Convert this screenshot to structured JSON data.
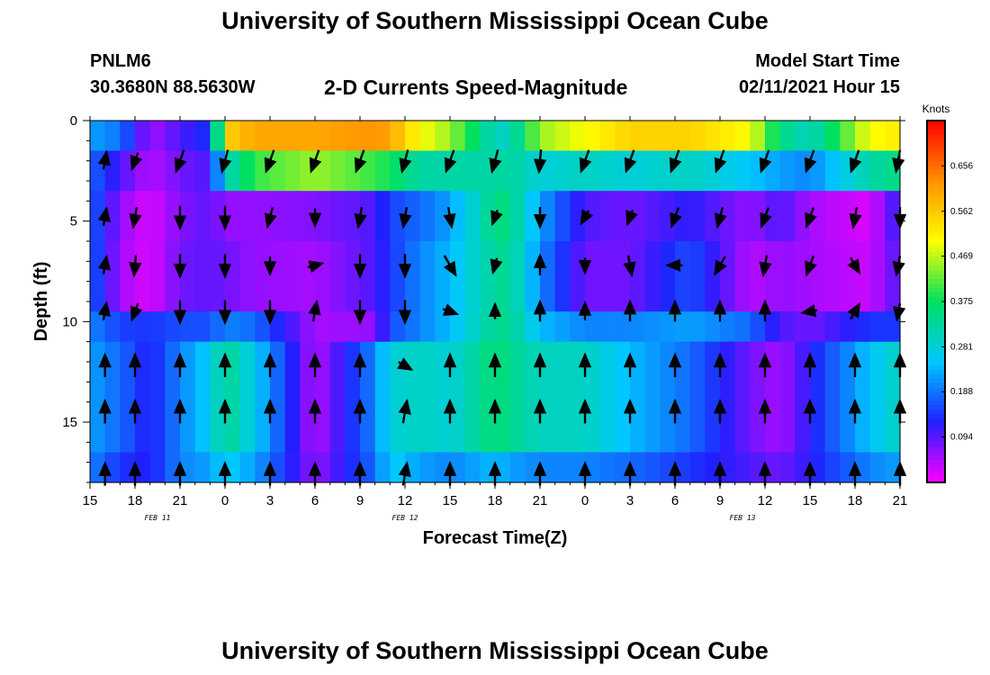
{
  "header": {
    "title": "University of Southern Mississippi Ocean Cube",
    "footer_title": "University of Southern Mississippi Ocean Cube",
    "station_id": "PNLM6",
    "station_coords": "30.3680N 88.5630W",
    "subtitle": "2-D Currents Speed-Magnitude",
    "model_start_label": "Model Start Time",
    "model_start_value": "02/11/2021 Hour 15"
  },
  "chart_data": {
    "type": "heatmap",
    "title": "2-D Currents Speed-Magnitude",
    "xlabel": "Forecast Time(Z)",
    "ylabel": "Depth (ft)",
    "x_tick_labels": [
      "15",
      "18",
      "21",
      "0",
      "3",
      "6",
      "9",
      "12",
      "15",
      "18",
      "21",
      "0",
      "3",
      "6",
      "9",
      "12",
      "15",
      "18",
      "21"
    ],
    "x_hours": [
      0,
      3,
      6,
      9,
      12,
      15,
      18,
      21,
      24,
      27,
      30,
      33,
      36,
      39,
      42,
      45,
      48,
      51,
      54
    ],
    "date_labels": [
      {
        "text": "FEB 11",
        "hour": 4.5
      },
      {
        "text": "FEB 12",
        "hour": 21
      },
      {
        "text": "FEB 13",
        "hour": 43.5
      }
    ],
    "xlim": [
      0,
      54
    ],
    "y_ticks": [
      0,
      5,
      10,
      15
    ],
    "ylim": [
      0,
      18
    ],
    "y_inverted": true,
    "colorbar": {
      "label": "Knots",
      "tick_values": [
        0.656,
        0.562,
        0.469,
        0.375,
        0.281,
        0.188,
        0.094
      ],
      "tick_labels": [
        "0.656",
        "0.562",
        "0.469",
        "0.375",
        "0.281",
        "0.188",
        "0.094"
      ],
      "range": [
        0,
        0.75
      ],
      "colormap": [
        "#ff00ff",
        "#2020ff",
        "#00c8ff",
        "#00e060",
        "#ffff00",
        "#ff9000",
        "#ff0000"
      ]
    },
    "speed_layers": [
      {
        "depth_range": [
          0,
          1.5
        ],
        "hours": [
          0,
          2,
          4,
          6,
          8,
          9,
          11,
          15,
          19,
          20,
          22,
          24,
          27,
          28,
          30,
          33,
          36,
          40,
          44,
          46,
          48,
          52,
          54
        ],
        "speed": [
          0.22,
          0.19,
          0.05,
          0.1,
          0.14,
          0.55,
          0.6,
          0.6,
          0.62,
          0.6,
          0.5,
          0.45,
          0.3,
          0.3,
          0.45,
          0.5,
          0.55,
          0.55,
          0.5,
          0.35,
          0.3,
          0.5,
          0.52
        ]
      },
      {
        "depth_range": [
          1.5,
          3.5
        ],
        "hours": [
          0,
          2,
          4,
          6,
          8,
          9,
          11,
          15,
          19,
          20,
          22,
          24,
          27,
          28,
          30,
          33,
          36,
          40,
          44,
          46,
          48,
          52,
          54
        ],
        "speed": [
          0.18,
          0.1,
          0.04,
          0.08,
          0.1,
          0.3,
          0.4,
          0.45,
          0.4,
          0.38,
          0.32,
          0.32,
          0.32,
          0.33,
          0.28,
          0.3,
          0.28,
          0.3,
          0.25,
          0.22,
          0.2,
          0.32,
          0.35
        ]
      },
      {
        "depth_range": [
          3.5,
          6
        ],
        "hours": [
          0,
          2,
          4,
          6,
          8,
          9,
          11,
          15,
          19,
          20,
          22,
          24,
          27,
          28,
          30,
          33,
          36,
          40,
          44,
          46,
          48,
          52,
          54
        ],
        "speed": [
          0.18,
          0.06,
          0.02,
          0.07,
          0.09,
          0.06,
          0.06,
          0.07,
          0.1,
          0.15,
          0.18,
          0.22,
          0.35,
          0.35,
          0.22,
          0.1,
          0.08,
          0.12,
          0.06,
          0.1,
          0.05,
          0.02,
          0.12
        ]
      },
      {
        "depth_range": [
          6,
          9.5
        ],
        "hours": [
          0,
          2,
          4,
          6,
          8,
          9,
          11,
          15,
          19,
          20,
          22,
          24,
          27,
          28,
          30,
          33,
          36,
          40,
          44,
          46,
          48,
          52,
          54
        ],
        "speed": [
          0.18,
          0.05,
          0.02,
          0.08,
          0.09,
          0.08,
          0.06,
          0.05,
          0.1,
          0.14,
          0.2,
          0.24,
          0.33,
          0.34,
          0.2,
          0.08,
          0.08,
          0.16,
          0.04,
          0.06,
          0.05,
          0.03,
          0.1
        ]
      },
      {
        "depth_range": [
          9.5,
          11
        ],
        "hours": [
          0,
          2,
          4,
          6,
          8,
          9,
          11,
          15,
          19,
          20,
          22,
          24,
          27,
          28,
          30,
          33,
          36,
          40,
          44,
          46,
          48,
          52,
          54
        ],
        "speed": [
          0.2,
          0.15,
          0.14,
          0.16,
          0.16,
          0.2,
          0.18,
          0.05,
          0.06,
          0.16,
          0.2,
          0.24,
          0.34,
          0.34,
          0.24,
          0.2,
          0.2,
          0.22,
          0.18,
          0.1,
          0.08,
          0.14,
          0.14
        ]
      },
      {
        "depth_range": [
          11,
          16.5
        ],
        "hours": [
          0,
          2,
          4,
          6,
          8,
          9,
          11,
          15,
          19,
          20,
          22,
          24,
          27,
          28,
          30,
          33,
          36,
          40,
          44,
          46,
          48,
          52,
          54
        ],
        "speed": [
          0.22,
          0.18,
          0.12,
          0.2,
          0.26,
          0.34,
          0.26,
          0.04,
          0.2,
          0.28,
          0.3,
          0.28,
          0.36,
          0.34,
          0.3,
          0.3,
          0.24,
          0.18,
          0.08,
          0.05,
          0.12,
          0.25,
          0.3
        ]
      },
      {
        "depth_range": [
          16.5,
          18
        ],
        "hours": [
          0,
          2,
          4,
          6,
          8,
          9,
          11,
          15,
          19,
          20,
          22,
          24,
          27,
          28,
          30,
          33,
          36,
          40,
          44,
          46,
          48,
          52,
          54
        ],
        "speed": [
          0.2,
          0.14,
          0.12,
          0.2,
          0.22,
          0.26,
          0.22,
          0.06,
          0.18,
          0.26,
          0.22,
          0.2,
          0.24,
          0.22,
          0.2,
          0.2,
          0.18,
          0.14,
          0.1,
          0.08,
          0.12,
          0.2,
          0.22
        ]
      }
    ],
    "vector_depths_ft": [
      2,
      4.8,
      7.2,
      9.5,
      12.2,
      14.5,
      17.6
    ],
    "vectors": [
      {
        "hour": 1,
        "dirs": [
          10,
          10,
          10,
          10,
          0,
          0,
          0
        ],
        "len": [
          0.7,
          0.7,
          0.7,
          0.7,
          0.9,
          0.9,
          0.9
        ]
      },
      {
        "hour": 3,
        "dirs": [
          200,
          190,
          185,
          200,
          0,
          0,
          0
        ],
        "len": [
          0.7,
          0.8,
          0.8,
          0.7,
          0.9,
          0.9,
          0.9
        ]
      },
      {
        "hour": 6,
        "dirs": [
          200,
          180,
          180,
          180,
          0,
          0,
          0
        ],
        "len": [
          0.9,
          0.9,
          0.9,
          0.9,
          0.9,
          0.9,
          0.9
        ]
      },
      {
        "hour": 9,
        "dirs": [
          195,
          180,
          180,
          180,
          0,
          0,
          0
        ],
        "len": [
          0.9,
          0.9,
          0.9,
          0.9,
          0.9,
          0.9,
          0.9
        ]
      },
      {
        "hour": 12,
        "dirs": [
          200,
          195,
          180,
          180,
          0,
          0,
          0
        ],
        "len": [
          0.9,
          0.8,
          0.7,
          0.9,
          0.9,
          0.9,
          0.9
        ]
      },
      {
        "hour": 15,
        "dirs": [
          200,
          180,
          75,
          10,
          0,
          0,
          0
        ],
        "len": [
          0.9,
          0.7,
          0.6,
          0.8,
          0.9,
          0.9,
          0.9
        ]
      },
      {
        "hour": 18,
        "dirs": [
          200,
          190,
          180,
          180,
          0,
          0,
          0
        ],
        "len": [
          0.9,
          0.8,
          0.9,
          0.9,
          0.9,
          0.9,
          0.9
        ]
      },
      {
        "hour": 21,
        "dirs": [
          195,
          190,
          180,
          180,
          120,
          10,
          10
        ],
        "len": [
          0.9,
          0.8,
          0.9,
          0.9,
          0.6,
          0.9,
          0.9
        ]
      },
      {
        "hour": 24,
        "dirs": [
          200,
          170,
          150,
          110,
          0,
          0,
          0
        ],
        "len": [
          0.9,
          0.8,
          0.9,
          0.6,
          0.9,
          0.9,
          0.9
        ]
      },
      {
        "hour": 27,
        "dirs": [
          195,
          200,
          195,
          0,
          0,
          0,
          0
        ],
        "len": [
          0.9,
          0.6,
          0.6,
          0.6,
          0.9,
          0.9,
          0.9
        ]
      },
      {
        "hour": 30,
        "dirs": [
          185,
          180,
          0,
          0,
          0,
          0,
          0
        ],
        "len": [
          0.9,
          0.8,
          0.8,
          0.8,
          0.9,
          0.9,
          0.9
        ]
      },
      {
        "hour": 33,
        "dirs": [
          200,
          210,
          180,
          0,
          0,
          0,
          0
        ],
        "len": [
          0.9,
          0.6,
          0.6,
          0.7,
          0.9,
          0.9,
          0.9
        ]
      },
      {
        "hour": 36,
        "dirs": [
          200,
          200,
          170,
          0,
          0,
          0,
          0
        ],
        "len": [
          0.9,
          0.6,
          0.8,
          0.8,
          0.9,
          0.9,
          0.9
        ]
      },
      {
        "hour": 39,
        "dirs": [
          200,
          200,
          270,
          0,
          0,
          0,
          0
        ],
        "len": [
          0.9,
          0.8,
          0.6,
          0.8,
          0.9,
          0.9,
          0.9
        ]
      },
      {
        "hour": 42,
        "dirs": [
          200,
          195,
          210,
          0,
          0,
          0,
          0
        ],
        "len": [
          0.9,
          0.8,
          0.8,
          0.8,
          0.9,
          0.9,
          0.9
        ]
      },
      {
        "hour": 45,
        "dirs": [
          200,
          200,
          190,
          0,
          0,
          0,
          0
        ],
        "len": [
          0.9,
          0.8,
          0.8,
          0.8,
          0.9,
          0.9,
          0.9
        ]
      },
      {
        "hour": 48,
        "dirs": [
          200,
          200,
          200,
          260,
          0,
          0,
          0
        ],
        "len": [
          0.9,
          0.8,
          0.8,
          0.6,
          0.9,
          0.9,
          0.9
        ]
      },
      {
        "hour": 51,
        "dirs": [
          200,
          190,
          150,
          30,
          0,
          0,
          0
        ],
        "len": [
          0.9,
          0.8,
          0.7,
          0.7,
          0.9,
          0.9,
          0.9
        ]
      },
      {
        "hour": 54,
        "dirs": [
          200,
          180,
          200,
          200,
          0,
          0,
          0
        ],
        "len": [
          0.9,
          0.8,
          0.8,
          0.7,
          0.9,
          0.9,
          0.9
        ]
      }
    ]
  }
}
